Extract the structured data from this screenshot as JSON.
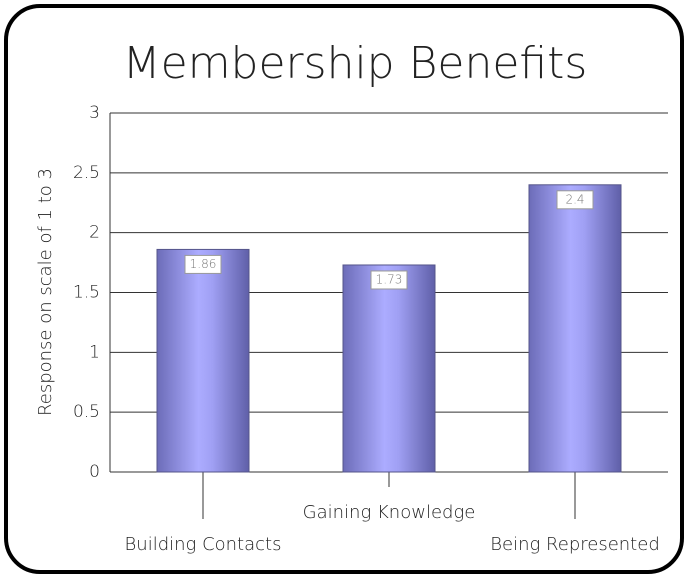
{
  "chart_data": {
    "type": "bar",
    "title": "Membership Benefits",
    "y_label": "Response on scale of 1 to 3",
    "categories": [
      "Building Contacts",
      "Gaining Knowledge",
      "Being Represented"
    ],
    "values": [
      1.86,
      1.73,
      2.4
    ],
    "color": "#9a9af0",
    "ylim": [
      0,
      3
    ],
    "yticks": [
      0,
      0.5,
      1,
      1.5,
      2,
      2.5,
      3
    ],
    "grid": true
  }
}
